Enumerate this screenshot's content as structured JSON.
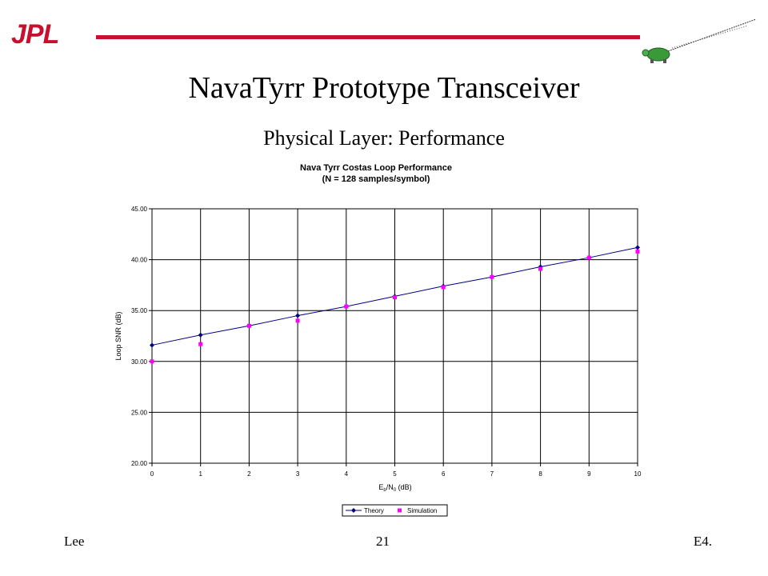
{
  "logo": "JPL",
  "slide": {
    "title": "NavaTyrr Prototype Transceiver",
    "subtitle": "Physical Layer: Performance"
  },
  "footer": {
    "left": "Lee",
    "center": "21",
    "right": "E4."
  },
  "colors": {
    "brand_red": "#c8102e",
    "theory": "#000080",
    "simulation": "#ff00ff"
  },
  "chart_data": {
    "type": "line",
    "title_line1": "Nava Tyrr Costas Loop Performance",
    "title_line2": "(N = 128 samples/symbol)",
    "xlabel": "Eb/N0 (dB)",
    "ylabel": "Loop SNR (dB)",
    "xlim": [
      0,
      10
    ],
    "ylim": [
      20,
      45
    ],
    "x_ticks": [
      "0",
      "1",
      "2",
      "3",
      "4",
      "5",
      "6",
      "7",
      "8",
      "9",
      "10"
    ],
    "y_ticks": [
      "20.00",
      "25.00",
      "30.00",
      "35.00",
      "40.00",
      "45.00"
    ],
    "grid": true,
    "legend_position": "bottom",
    "series": [
      {
        "name": "Theory",
        "marker": "diamond",
        "line": true,
        "x": [
          0,
          1,
          2,
          3,
          4,
          5,
          6,
          7,
          8,
          9,
          10
        ],
        "values": [
          31.6,
          32.6,
          33.5,
          34.5,
          35.4,
          36.4,
          37.4,
          38.3,
          39.3,
          40.2,
          41.2
        ]
      },
      {
        "name": "Simulation",
        "marker": "square",
        "line": false,
        "x": [
          0,
          1,
          2,
          3,
          4,
          5,
          6,
          7,
          8,
          9,
          10
        ],
        "values": [
          30.0,
          31.7,
          33.5,
          34.0,
          35.4,
          36.3,
          37.3,
          38.3,
          39.1,
          40.2,
          40.8
        ]
      }
    ]
  }
}
